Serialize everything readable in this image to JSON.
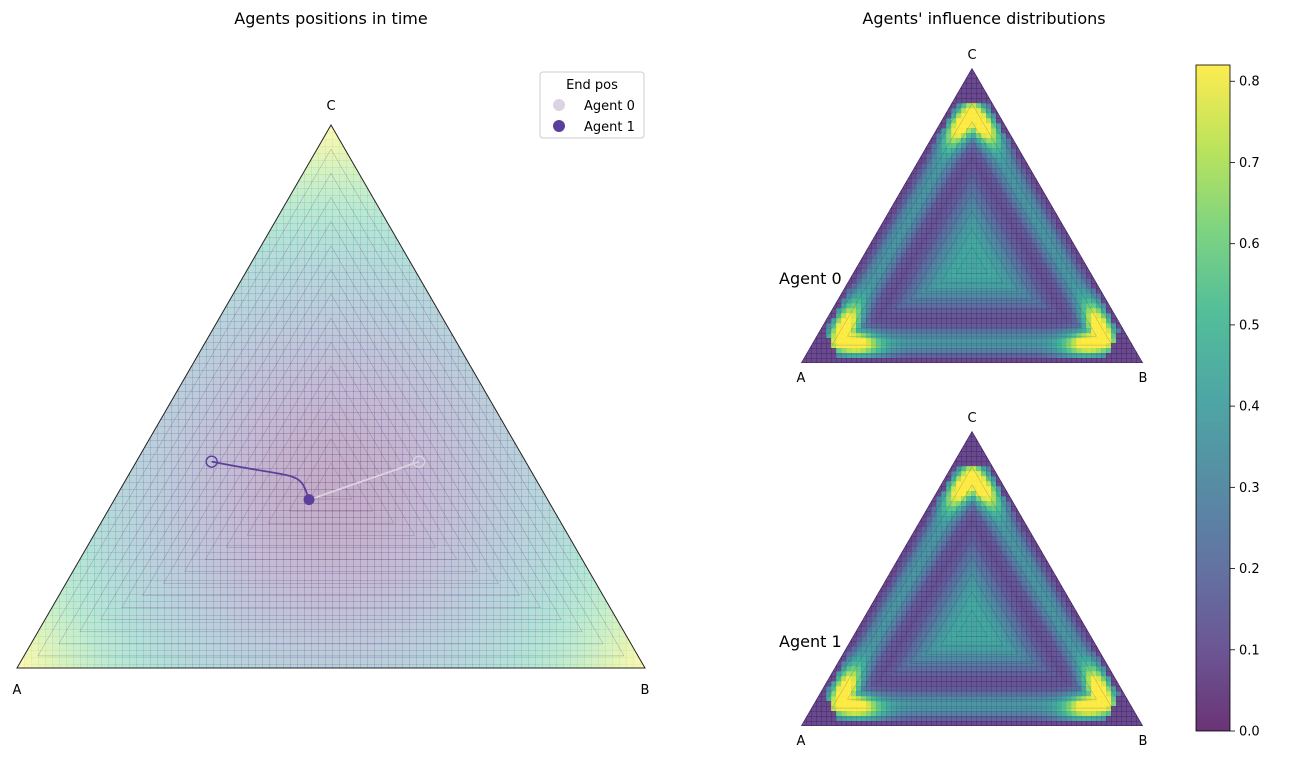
{
  "chart_data": [
    {
      "type": "ternary-contour",
      "title": "Agents positions in time",
      "vertices": [
        "A",
        "B",
        "C"
      ],
      "background_field": "distance-from-center (viewed, alpha-faded viridis)",
      "legend": {
        "title": "End pos",
        "placement": "top-right",
        "entries": [
          {
            "label": "Agent 0",
            "color": "#dcd3e2"
          },
          {
            "label": "Agent 1",
            "color": "#5c3e9c"
          }
        ]
      },
      "series": [
        {
          "name": "Agent 0",
          "color": "#dcd3e2",
          "start": [
            0.17,
            0.45,
            0.38
          ],
          "end": [
            0.38,
            0.31,
            0.31
          ]
        },
        {
          "name": "Agent 1",
          "color": "#5c3e9c",
          "start": [
            0.5,
            0.12,
            0.38
          ],
          "end": [
            0.38,
            0.31,
            0.31
          ]
        }
      ]
    },
    {
      "type": "ternary-contour",
      "title": "Agents' influence distributions",
      "vertices": [
        "A",
        "B",
        "C"
      ],
      "panels": [
        {
          "name": "Agent 0",
          "peak_value": 0.82
        },
        {
          "name": "Agent 1",
          "peak_value": 0.82
        }
      ],
      "colorbar": {
        "colormap": "viridis",
        "range": [
          0.0,
          0.82
        ],
        "ticks": [
          "0.0",
          "0.1",
          "0.2",
          "0.3",
          "0.4",
          "0.5",
          "0.6",
          "0.7",
          "0.8"
        ]
      }
    }
  ]
}
